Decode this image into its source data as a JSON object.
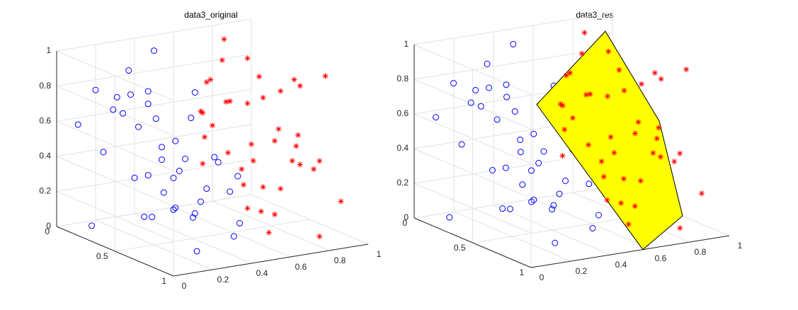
{
  "chart_data": [
    {
      "type": "scatter3d",
      "title": "data3_original",
      "xlim": [
        0,
        1
      ],
      "ylim": [
        0,
        1
      ],
      "zlim": [
        0,
        1
      ],
      "xticks": [
        0,
        0.2,
        0.4,
        0.6,
        0.8,
        1
      ],
      "yticks": [
        0,
        0.5,
        1
      ],
      "zticks": [
        0,
        0.2,
        0.4,
        0.6,
        0.8,
        1
      ],
      "grid": true,
      "series": [
        {
          "color": "#0000ff",
          "marker": "circle",
          "x": [
            0.05,
            0.12,
            0.2,
            0.3,
            0.4,
            0.1,
            0.25,
            0.35,
            0.45,
            0.15,
            0.08,
            0.22,
            0.33,
            0.42,
            0.18,
            0.28,
            0.38,
            0.48,
            0.02,
            0.13,
            0.27,
            0.36,
            0.44,
            0.06,
            0.19,
            0.31,
            0.41,
            0.11,
            0.24,
            0.34,
            0.47,
            0.16,
            0.09,
            0.29,
            0.39,
            0.21,
            0.43,
            0.14,
            0.32,
            0.26
          ],
          "y": [
            0.1,
            0.8,
            0.3,
            0.6,
            0.9,
            0.5,
            0.2,
            0.7,
            0.4,
            0.95,
            0.35,
            0.65,
            0.15,
            0.85,
            0.45,
            0.05,
            0.55,
            0.25,
            0.75,
            0.6,
            0.9,
            0.3,
            0.1,
            0.2,
            0.7,
            0.4,
            0.8,
            0.15,
            0.5,
            0.95,
            0.6,
            0.3,
            0.85,
            0.75,
            0.2,
            0.05,
            0.45,
            0.55,
            0.65,
            0.35
          ],
          "z": [
            0.6,
            0.3,
            0.8,
            0.5,
            0.2,
            0.4,
            0.9,
            0.35,
            0.65,
            0.1,
            0.75,
            0.25,
            0.55,
            0.45,
            0.15,
            0.7,
            0.85,
            0.3,
            0.5,
            0.2,
            0.6,
            0.4,
            0.95,
            0.05,
            0.65,
            0.25,
            0.35,
            0.8,
            0.55,
            0.15,
            0.45,
            0.7,
            0.5,
            0.3,
            0.6,
            0.4,
            0.1,
            0.9,
            0.2,
            0.75
          ]
        },
        {
          "color": "#ff0000",
          "marker": "asterisk",
          "x": [
            0.55,
            0.62,
            0.7,
            0.8,
            0.9,
            0.6,
            0.75,
            0.85,
            0.95,
            0.65,
            0.58,
            0.72,
            0.83,
            0.92,
            0.68,
            0.78,
            0.88,
            0.98,
            0.52,
            0.63,
            0.77,
            0.86,
            0.94,
            0.56,
            0.69,
            0.81,
            0.91,
            0.61,
            0.74,
            0.84,
            0.97,
            0.66,
            0.59,
            0.79,
            0.89,
            0.71,
            0.93,
            0.64,
            0.82,
            0.76
          ],
          "y": [
            0.4,
            0.2,
            0.75,
            0.1,
            0.55,
            0.9,
            0.35,
            0.65,
            0.05,
            0.5,
            0.85,
            0.25,
            0.7,
            0.15,
            0.6,
            0.95,
            0.3,
            0.45,
            0.8,
            0.2,
            0.05,
            0.6,
            0.35,
            0.7,
            0.1,
            0.9,
            0.5,
            0.4,
            0.25,
            0.8,
            0.15,
            0.65,
            0.3,
            0.55,
            0.95,
            0.45,
            0.75,
            0.2,
            0.1,
            0.6
          ],
          "z": [
            0.85,
            0.6,
            0.3,
            0.95,
            0.45,
            0.7,
            0.2,
            0.55,
            0.8,
            0.35,
            0.1,
            0.65,
            0.4,
            0.25,
            0.9,
            0.5,
            0.15,
            0.75,
            0.6,
            0.3,
            0.45,
            0.85,
            0.7,
            0.2,
            0.55,
            0.05,
            0.35,
            0.95,
            0.65,
            0.4,
            0.6,
            0.15,
            0.8,
            0.5,
            0.25,
            0.7,
            0.9,
            0.45,
            0.3,
            0.1
          ]
        }
      ]
    },
    {
      "type": "scatter3d",
      "title": "data3_res",
      "xlim": [
        0,
        1
      ],
      "ylim": [
        0,
        1
      ],
      "zlim": [
        0,
        1
      ],
      "xticks": [
        0,
        0.2,
        0.4,
        0.6,
        0.8,
        1
      ],
      "yticks": [
        0,
        0.5,
        1
      ],
      "zticks": [
        0,
        0.2,
        0.4,
        0.6,
        0.8,
        1
      ],
      "grid": true,
      "plane": {
        "color": "#ffff00",
        "vertices": [
          [
            0.964,
            0,
            0.9
          ],
          [
            0.5,
            0.2,
            0.62
          ],
          [
            0.564,
            1,
            0
          ],
          [
            1,
            0.6,
            0
          ],
          [
            1,
            0.4,
            0.49
          ]
        ]
      },
      "series": [
        {
          "color": "#0000ff",
          "marker": "circle",
          "x": [
            0.05,
            0.12,
            0.2,
            0.3,
            0.4,
            0.1,
            0.25,
            0.35,
            0.45,
            0.15,
            0.08,
            0.22,
            0.33,
            0.42,
            0.18,
            0.28,
            0.38,
            0.48,
            0.02,
            0.13,
            0.27,
            0.36,
            0.44,
            0.06,
            0.19,
            0.31,
            0.41,
            0.11,
            0.24,
            0.34,
            0.47,
            0.16,
            0.09,
            0.29,
            0.39,
            0.21,
            0.43,
            0.14,
            0.32,
            0.26
          ],
          "y": [
            0.1,
            0.8,
            0.3,
            0.6,
            0.9,
            0.5,
            0.2,
            0.7,
            0.4,
            0.95,
            0.35,
            0.65,
            0.15,
            0.85,
            0.45,
            0.05,
            0.55,
            0.25,
            0.75,
            0.6,
            0.9,
            0.3,
            0.1,
            0.2,
            0.7,
            0.4,
            0.8,
            0.15,
            0.5,
            0.95,
            0.6,
            0.3,
            0.85,
            0.75,
            0.2,
            0.05,
            0.45,
            0.55,
            0.65,
            0.35
          ],
          "z": [
            0.6,
            0.3,
            0.8,
            0.5,
            0.2,
            0.4,
            0.9,
            0.35,
            0.65,
            0.1,
            0.75,
            0.25,
            0.55,
            0.45,
            0.15,
            0.7,
            0.85,
            0.3,
            0.5,
            0.2,
            0.6,
            0.4,
            0.95,
            0.05,
            0.65,
            0.25,
            0.35,
            0.8,
            0.55,
            0.15,
            0.45,
            0.7,
            0.5,
            0.3,
            0.6,
            0.4,
            0.1,
            0.9,
            0.2,
            0.75
          ]
        },
        {
          "color": "#ff0000",
          "marker": "asterisk",
          "x": [
            0.55,
            0.62,
            0.7,
            0.8,
            0.9,
            0.6,
            0.75,
            0.85,
            0.95,
            0.65,
            0.58,
            0.72,
            0.83,
            0.92,
            0.68,
            0.78,
            0.88,
            0.98,
            0.52,
            0.63,
            0.77,
            0.86,
            0.94,
            0.56,
            0.69,
            0.81,
            0.91,
            0.61,
            0.74,
            0.84,
            0.97,
            0.66,
            0.59,
            0.79,
            0.89,
            0.71,
            0.93,
            0.64,
            0.82,
            0.76
          ],
          "y": [
            0.4,
            0.2,
            0.75,
            0.1,
            0.55,
            0.9,
            0.35,
            0.65,
            0.05,
            0.5,
            0.85,
            0.25,
            0.7,
            0.15,
            0.6,
            0.95,
            0.3,
            0.45,
            0.8,
            0.2,
            0.05,
            0.6,
            0.35,
            0.7,
            0.1,
            0.9,
            0.5,
            0.4,
            0.25,
            0.8,
            0.15,
            0.65,
            0.3,
            0.55,
            0.95,
            0.45,
            0.75,
            0.2,
            0.1,
            0.6
          ],
          "z": [
            0.85,
            0.6,
            0.3,
            0.95,
            0.45,
            0.7,
            0.2,
            0.55,
            0.8,
            0.35,
            0.1,
            0.65,
            0.4,
            0.25,
            0.9,
            0.5,
            0.15,
            0.75,
            0.6,
            0.3,
            0.45,
            0.85,
            0.7,
            0.2,
            0.55,
            0.05,
            0.35,
            0.95,
            0.65,
            0.4,
            0.6,
            0.15,
            0.8,
            0.5,
            0.25,
            0.7,
            0.9,
            0.45,
            0.3,
            0.1
          ]
        }
      ]
    }
  ]
}
